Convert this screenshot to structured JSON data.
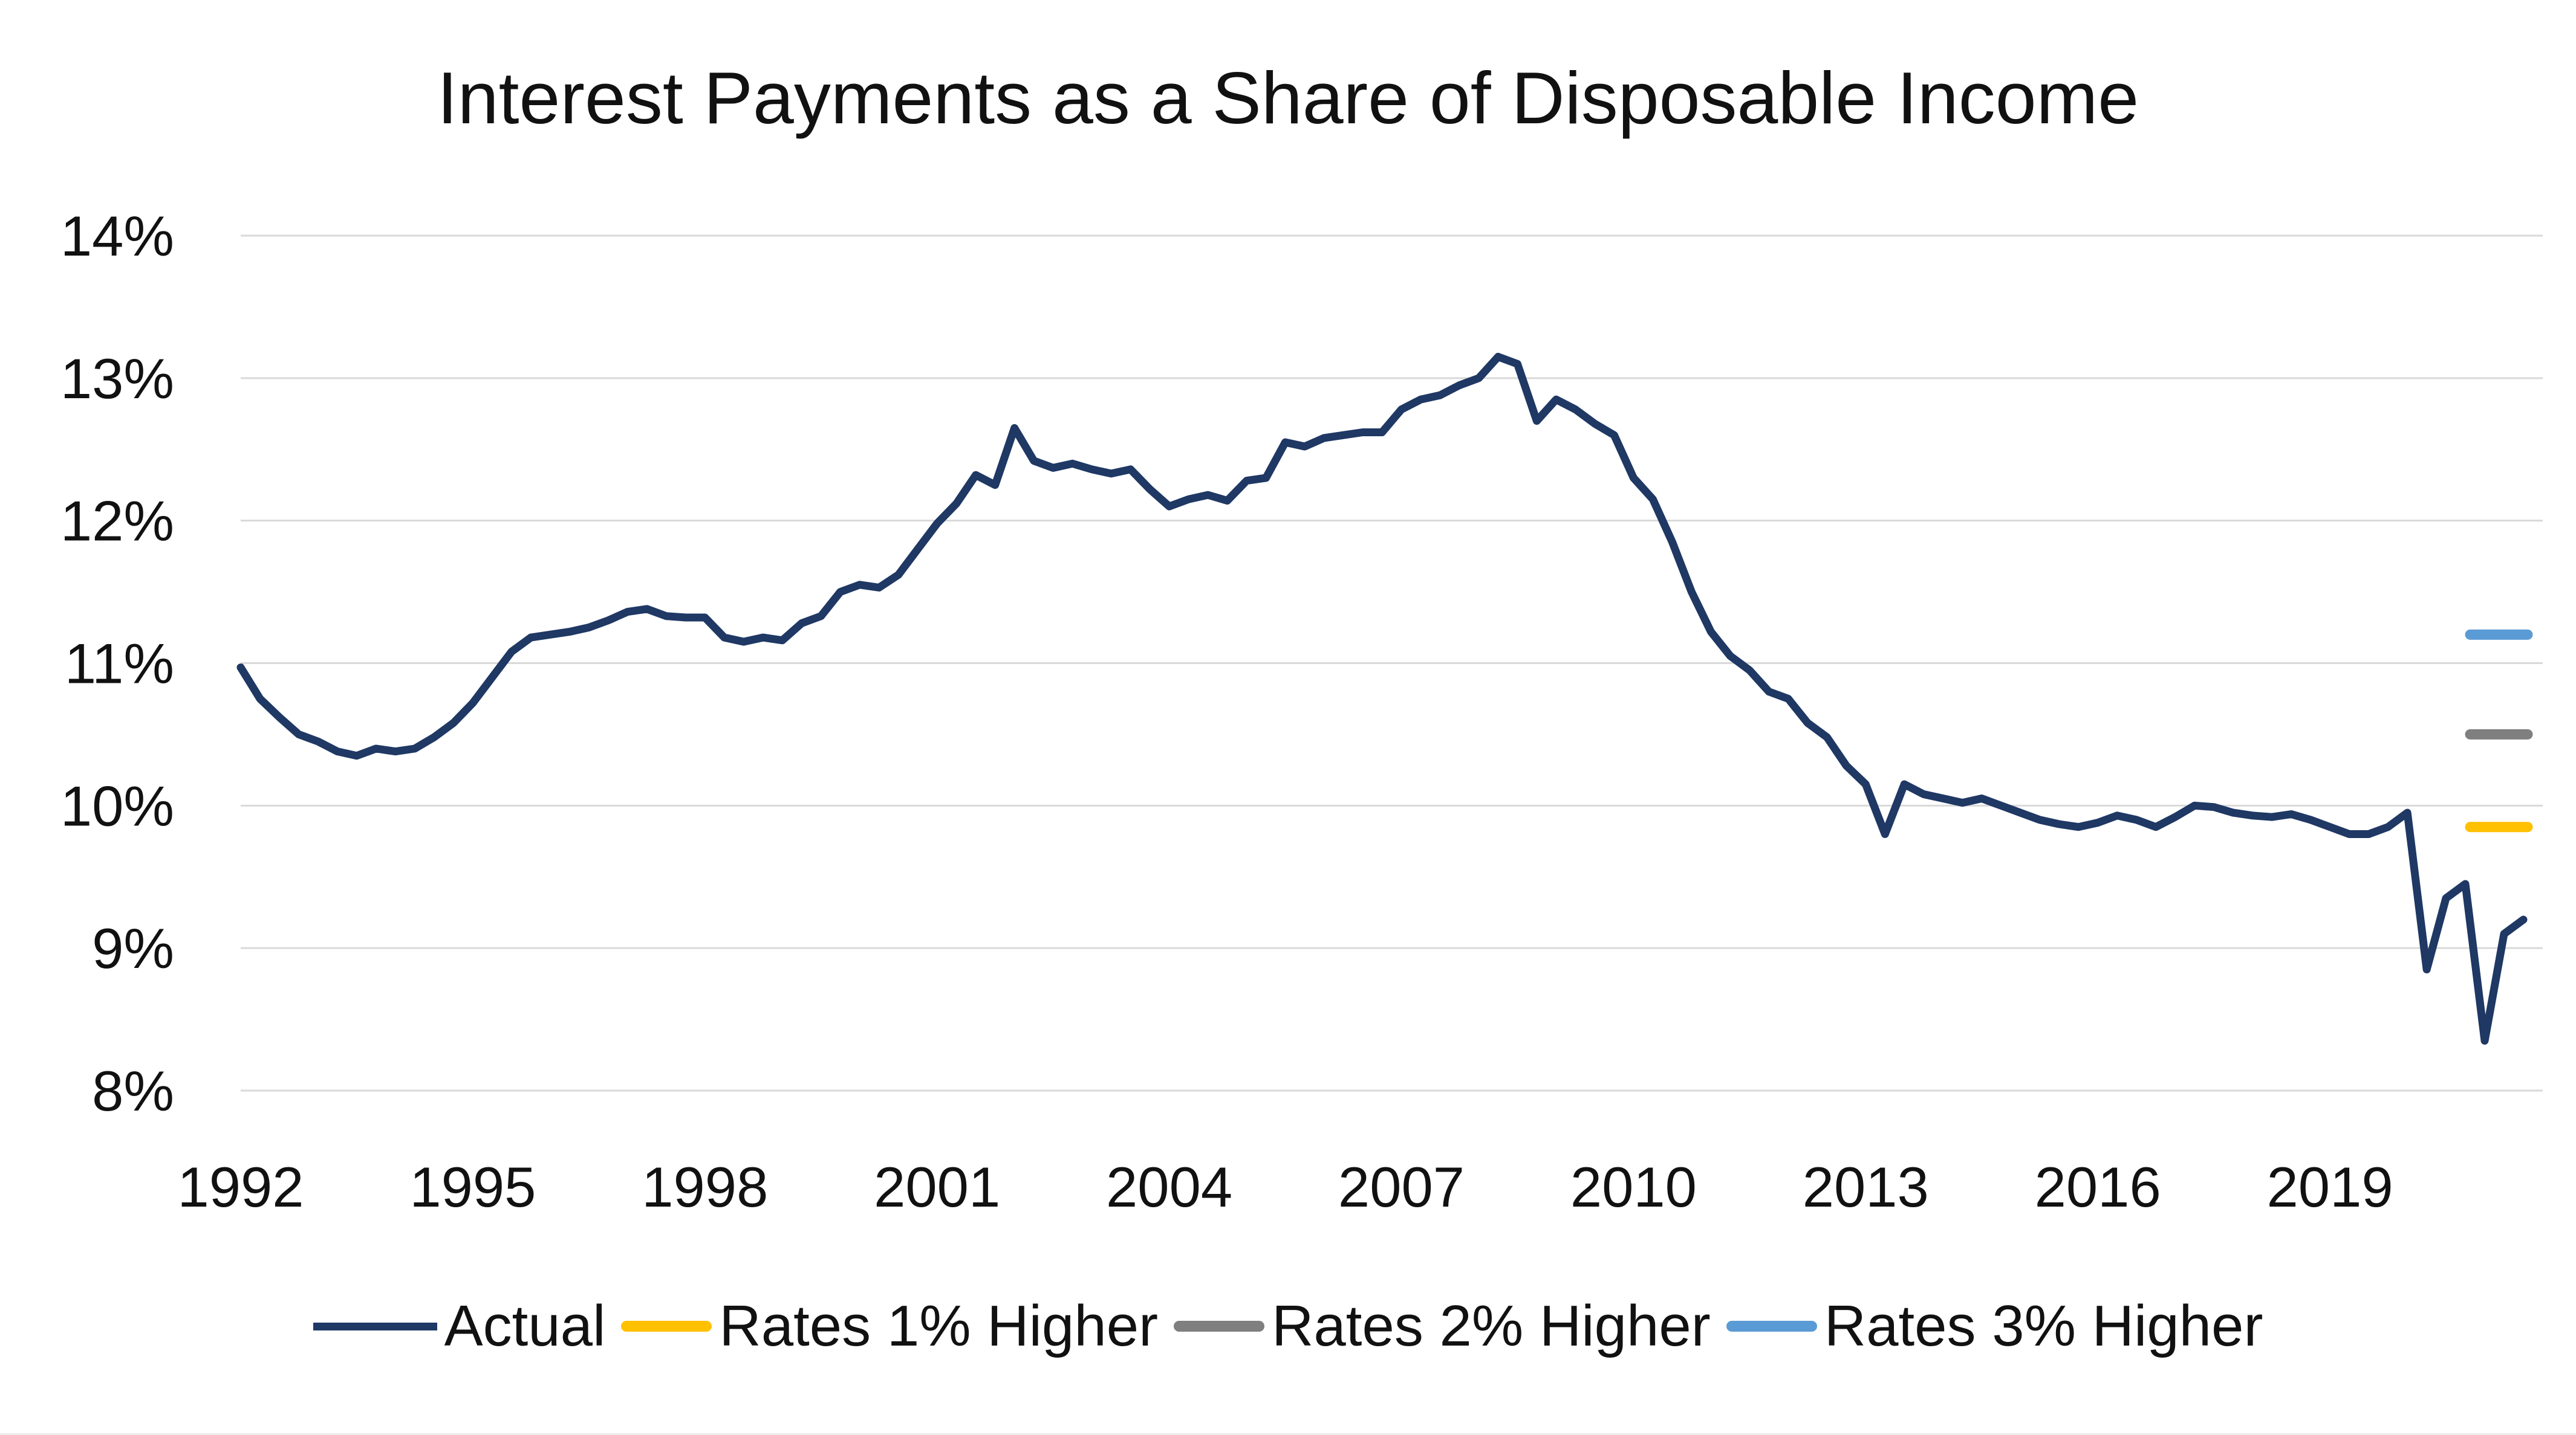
{
  "chart_data": {
    "type": "line",
    "title": "Interest Payments as a Share of Disposable Income",
    "xlabel": "",
    "ylabel": "",
    "ylim": [
      8,
      14
    ],
    "yticks": [
      8,
      9,
      10,
      11,
      12,
      13,
      14
    ],
    "ytick_suffix": "%",
    "xlim": [
      1992,
      2021.75
    ],
    "xticks": [
      1992,
      1995,
      1998,
      2001,
      2004,
      2007,
      2010,
      2013,
      2016,
      2019
    ],
    "grid": "horizontal-only",
    "gridline_color": "#d9d9d9",
    "background": "#ffffff",
    "legend_position": "bottom",
    "series": [
      {
        "name": "Actual",
        "color": "#1f3864",
        "points": [
          [
            1992.0,
            10.97
          ],
          [
            1992.25,
            10.75
          ],
          [
            1992.5,
            10.62
          ],
          [
            1992.75,
            10.5
          ],
          [
            1993.0,
            10.45
          ],
          [
            1993.25,
            10.38
          ],
          [
            1993.5,
            10.35
          ],
          [
            1993.75,
            10.4
          ],
          [
            1994.0,
            10.38
          ],
          [
            1994.25,
            10.4
          ],
          [
            1994.5,
            10.48
          ],
          [
            1994.75,
            10.58
          ],
          [
            1995.0,
            10.72
          ],
          [
            1995.25,
            10.9
          ],
          [
            1995.5,
            11.08
          ],
          [
            1995.75,
            11.18
          ],
          [
            1996.0,
            11.2
          ],
          [
            1996.25,
            11.22
          ],
          [
            1996.5,
            11.25
          ],
          [
            1996.75,
            11.3
          ],
          [
            1997.0,
            11.36
          ],
          [
            1997.25,
            11.38
          ],
          [
            1997.5,
            11.33
          ],
          [
            1997.75,
            11.32
          ],
          [
            1998.0,
            11.32
          ],
          [
            1998.25,
            11.18
          ],
          [
            1998.5,
            11.15
          ],
          [
            1998.75,
            11.18
          ],
          [
            1999.0,
            11.16
          ],
          [
            1999.25,
            11.28
          ],
          [
            1999.5,
            11.33
          ],
          [
            1999.75,
            11.5
          ],
          [
            2000.0,
            11.55
          ],
          [
            2000.25,
            11.53
          ],
          [
            2000.5,
            11.62
          ],
          [
            2000.75,
            11.8
          ],
          [
            2001.0,
            11.98
          ],
          [
            2001.25,
            12.12
          ],
          [
            2001.5,
            12.32
          ],
          [
            2001.75,
            12.25
          ],
          [
            2002.0,
            12.65
          ],
          [
            2002.25,
            12.42
          ],
          [
            2002.5,
            12.37
          ],
          [
            2002.75,
            12.4
          ],
          [
            2003.0,
            12.36
          ],
          [
            2003.25,
            12.33
          ],
          [
            2003.5,
            12.36
          ],
          [
            2003.75,
            12.22
          ],
          [
            2004.0,
            12.1
          ],
          [
            2004.25,
            12.15
          ],
          [
            2004.5,
            12.18
          ],
          [
            2004.75,
            12.14
          ],
          [
            2005.0,
            12.28
          ],
          [
            2005.25,
            12.3
          ],
          [
            2005.5,
            12.55
          ],
          [
            2005.75,
            12.52
          ],
          [
            2006.0,
            12.58
          ],
          [
            2006.25,
            12.6
          ],
          [
            2006.5,
            12.62
          ],
          [
            2006.75,
            12.62
          ],
          [
            2007.0,
            12.78
          ],
          [
            2007.25,
            12.85
          ],
          [
            2007.5,
            12.88
          ],
          [
            2007.75,
            12.95
          ],
          [
            2008.0,
            13.0
          ],
          [
            2008.25,
            13.15
          ],
          [
            2008.5,
            13.1
          ],
          [
            2008.75,
            12.7
          ],
          [
            2009.0,
            12.85
          ],
          [
            2009.25,
            12.78
          ],
          [
            2009.5,
            12.68
          ],
          [
            2009.75,
            12.6
          ],
          [
            2010.0,
            12.3
          ],
          [
            2010.25,
            12.15
          ],
          [
            2010.5,
            11.85
          ],
          [
            2010.75,
            11.5
          ],
          [
            2011.0,
            11.22
          ],
          [
            2011.25,
            11.05
          ],
          [
            2011.5,
            10.95
          ],
          [
            2011.75,
            10.8
          ],
          [
            2012.0,
            10.75
          ],
          [
            2012.25,
            10.58
          ],
          [
            2012.5,
            10.48
          ],
          [
            2012.75,
            10.28
          ],
          [
            2013.0,
            10.15
          ],
          [
            2013.25,
            9.8
          ],
          [
            2013.5,
            10.15
          ],
          [
            2013.75,
            10.08
          ],
          [
            2014.0,
            10.05
          ],
          [
            2014.25,
            10.02
          ],
          [
            2014.5,
            10.05
          ],
          [
            2014.75,
            10.0
          ],
          [
            2015.0,
            9.95
          ],
          [
            2015.25,
            9.9
          ],
          [
            2015.5,
            9.87
          ],
          [
            2015.75,
            9.85
          ],
          [
            2016.0,
            9.88
          ],
          [
            2016.25,
            9.93
          ],
          [
            2016.5,
            9.9
          ],
          [
            2016.75,
            9.85
          ],
          [
            2017.0,
            9.92
          ],
          [
            2017.25,
            10.0
          ],
          [
            2017.5,
            9.99
          ],
          [
            2017.75,
            9.95
          ],
          [
            2018.0,
            9.93
          ],
          [
            2018.25,
            9.92
          ],
          [
            2018.5,
            9.94
          ],
          [
            2018.75,
            9.9
          ],
          [
            2019.0,
            9.85
          ],
          [
            2019.25,
            9.8
          ],
          [
            2019.5,
            9.8
          ],
          [
            2019.75,
            9.85
          ],
          [
            2020.0,
            9.95
          ],
          [
            2020.25,
            8.85
          ],
          [
            2020.5,
            9.35
          ],
          [
            2020.75,
            9.45
          ],
          [
            2021.0,
            8.35
          ],
          [
            2021.25,
            9.1
          ],
          [
            2021.5,
            9.2
          ]
        ]
      }
    ],
    "scenario_markers": [
      {
        "name": "Rates 1% Higher",
        "color": "#ffc000",
        "value": 9.85
      },
      {
        "name": "Rates 2% Higher",
        "color": "#7f7f7f",
        "value": 10.5
      },
      {
        "name": "Rates 3% Higher",
        "color": "#5b9bd5",
        "value": 11.2
      }
    ],
    "legend": [
      {
        "label": "Actual",
        "color": "#1f3864",
        "swatch": "line"
      },
      {
        "label": "Rates 1% Higher",
        "color": "#ffc000",
        "swatch": "dash"
      },
      {
        "label": "Rates 2% Higher",
        "color": "#7f7f7f",
        "swatch": "dash"
      },
      {
        "label": "Rates 3% Higher",
        "color": "#5b9bd5",
        "swatch": "dash"
      }
    ]
  }
}
